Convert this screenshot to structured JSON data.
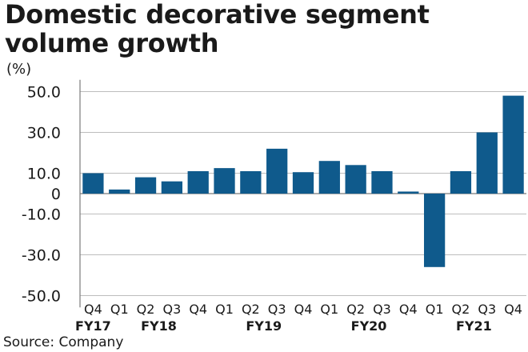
{
  "title": {
    "line1": "Domestic decorative segment",
    "line2": "volume growth"
  },
  "source": "Source: Company",
  "colors": {
    "bar": "#0f5a8c",
    "axis": "#7a7a7a",
    "grid": "#bdbdbd",
    "text": "#1a1a1a"
  },
  "chart_data": {
    "type": "bar",
    "title": "Domestic decorative segment volume growth",
    "ylabel": "(%)",
    "xlabel": "",
    "ylim": [
      -55,
      55
    ],
    "yticks": [
      50,
      30,
      10,
      0,
      -10,
      -30,
      -50
    ],
    "ytick_labels": [
      "50.0",
      "30.0",
      "10.0",
      "0",
      "-10.0",
      "-30.0",
      "-50.0"
    ],
    "grid": true,
    "categories": [
      "Q4",
      "Q1",
      "Q2",
      "Q3",
      "Q4",
      "Q1",
      "Q2",
      "Q3",
      "Q4",
      "Q1",
      "Q2",
      "Q3",
      "Q4",
      "Q1",
      "Q2",
      "Q3",
      "Q4"
    ],
    "values": [
      10,
      2,
      8,
      6,
      11,
      12.5,
      11,
      22,
      10.5,
      16,
      14,
      11,
      1,
      -36,
      11,
      30,
      48
    ],
    "year_labels": [
      {
        "label": "FY17",
        "index": 0
      },
      {
        "label": "FY18",
        "index": 2.5
      },
      {
        "label": "FY19",
        "index": 6.5
      },
      {
        "label": "FY20",
        "index": 10.5
      },
      {
        "label": "FY21",
        "index": 14.5
      }
    ]
  }
}
